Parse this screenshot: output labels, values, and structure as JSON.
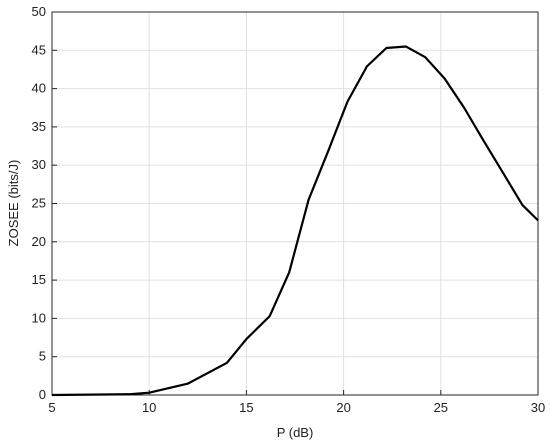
{
  "chart_data": {
    "type": "line",
    "x_label": "P (dB)",
    "y_label": "ZOSEE (bits/J)",
    "x": [
      5,
      7,
      9,
      10,
      12,
      14,
      15,
      16.2,
      17.2,
      18.2,
      19.2,
      20.2,
      21.2,
      22.2,
      23.2,
      24.2,
      25.2,
      26.2,
      27.2,
      28.2,
      29.2,
      30
    ],
    "series": [
      {
        "color": "#000000",
        "values": [
          0,
          0.05,
          0.1,
          0.3,
          1.5,
          4.2,
          7.3,
          10.3,
          16,
          25.5,
          31.8,
          38.3,
          42.9,
          45.3,
          45.5,
          44.1,
          41.3,
          37.5,
          33.2,
          29,
          24.8,
          22.8
        ]
      }
    ],
    "xlim": [
      5,
      30
    ],
    "xticks": [
      5,
      10,
      15,
      20,
      25,
      30
    ],
    "ylim": [
      0,
      50
    ],
    "yticks": [
      0,
      5,
      10,
      15,
      20,
      25,
      30,
      35,
      40,
      45,
      50
    ],
    "grid": true
  }
}
